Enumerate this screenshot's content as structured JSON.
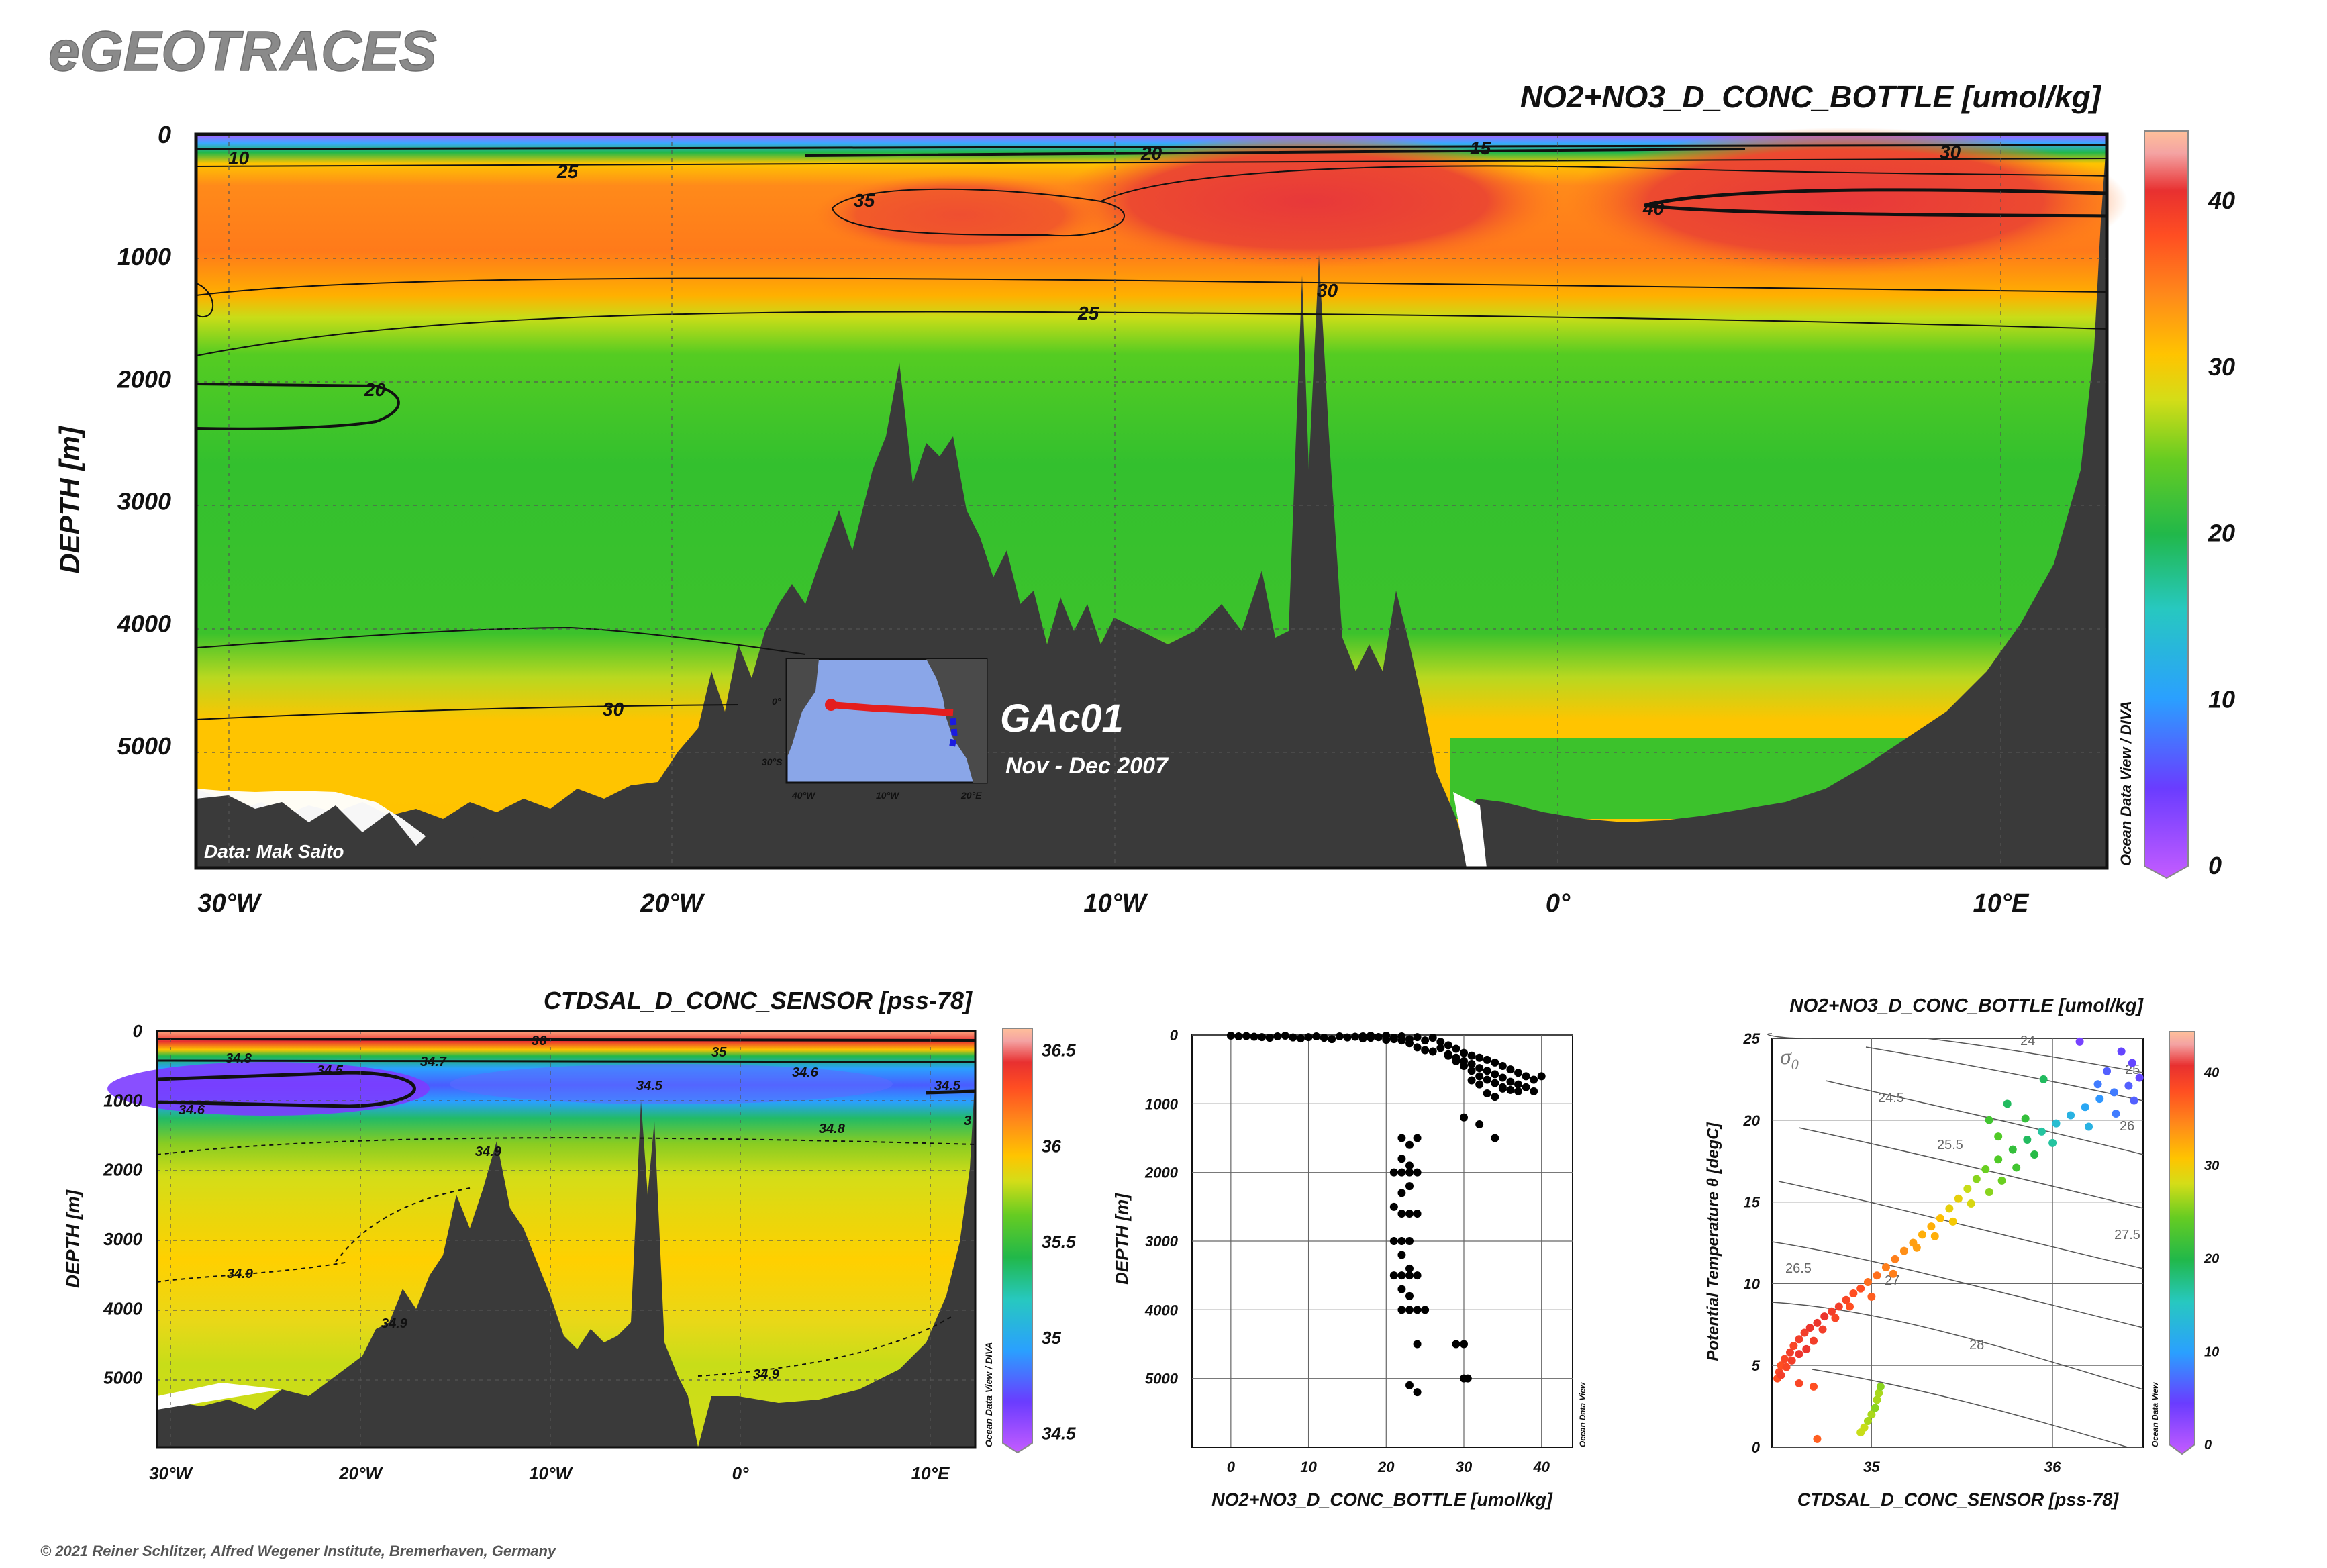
{
  "brand": "eGEOTRACES",
  "copyright": "© 2021 Reiner Schlitzer, Alfred Wegener Institute, Bremerhaven, Germany",
  "colors": {
    "seafloor": "#3a3a3a",
    "contour": "#111111",
    "colorscale": [
      "#b35cff",
      "#6a3cff",
      "#2aa0ff",
      "#27c8c0",
      "#21b84a",
      "#55cc22",
      "#c8dd18",
      "#ffc400",
      "#ff8a1a",
      "#ff4e22",
      "#e83030",
      "#f4a3a3",
      "#ffc09a"
    ]
  },
  "chart_data": [
    {
      "id": "main-section",
      "type": "heatmap",
      "title": "NO2+NO3_D_CONC_BOTTLE [umol/kg]",
      "ylabel": "DEPTH [m]",
      "xlabel": "",
      "x_ticks": [
        "30°W",
        "20°W",
        "10°W",
        "0°",
        "10°E"
      ],
      "y_ticks": [
        "0",
        "1000",
        "2000",
        "3000",
        "4000",
        "5000"
      ],
      "ylim": [
        0,
        6000
      ],
      "colorbar": {
        "ticks": [
          "0",
          "10",
          "20",
          "30",
          "40"
        ],
        "range": [
          0,
          44
        ]
      },
      "contour_labels": [
        "10",
        "25",
        "35",
        "20",
        "15",
        "30",
        "40",
        "30",
        "25",
        "20",
        "30"
      ],
      "credit": "Data: Mak Saito",
      "side_label": "Ocean Data View / DIVA",
      "grid": true,
      "inset": {
        "cruise": "GAc01",
        "dates": "Nov - Dec 2007",
        "lon_labels": [
          "40°W",
          "10°W",
          "20°E"
        ],
        "lat_labels": [
          "0°",
          "30°S"
        ]
      }
    },
    {
      "id": "salinity-section",
      "type": "heatmap",
      "title": "CTDSAL_D_CONC_SENSOR [pss-78]",
      "ylabel": "DEPTH [m]",
      "x_ticks": [
        "30°W",
        "20°W",
        "10°W",
        "0°",
        "10°E"
      ],
      "y_ticks": [
        "0",
        "1000",
        "2000",
        "3000",
        "4000",
        "5000"
      ],
      "ylim": [
        0,
        6000
      ],
      "colorbar": {
        "ticks": [
          "34.5",
          "35",
          "35.5",
          "36",
          "36.5"
        ],
        "range": [
          34.45,
          36.6
        ]
      },
      "contour_labels": [
        "36",
        "34.8",
        "35",
        "34.5",
        "34.7",
        "34.6",
        "34.5",
        "34.5",
        "34.6",
        "34.9",
        "34.8",
        "34.9",
        "34.9",
        "34.9",
        "3"
      ],
      "side_label": "Ocean Data View / DIVA",
      "grid": true
    },
    {
      "id": "profile-scatter",
      "type": "scatter",
      "xlabel": "NO2+NO3_D_CONC_BOTTLE [umol/kg]",
      "ylabel": "DEPTH [m]",
      "xlim": [
        -5,
        44
      ],
      "ylim": [
        0,
        6000
      ],
      "x_ticks": [
        "0",
        "10",
        "20",
        "30",
        "40"
      ],
      "y_ticks": [
        "0",
        "1000",
        "2000",
        "3000",
        "4000",
        "5000"
      ],
      "side_label": "Ocean Data View",
      "grid": true,
      "points": [
        [
          0,
          10
        ],
        [
          1,
          20
        ],
        [
          2,
          15
        ],
        [
          3,
          25
        ],
        [
          4,
          30
        ],
        [
          5,
          40
        ],
        [
          6,
          20
        ],
        [
          7,
          10
        ],
        [
          8,
          35
        ],
        [
          9,
          50
        ],
        [
          10,
          30
        ],
        [
          11,
          20
        ],
        [
          12,
          40
        ],
        [
          13,
          60
        ],
        [
          14,
          20
        ],
        [
          15,
          35
        ],
        [
          16,
          25
        ],
        [
          17,
          50
        ],
        [
          18,
          10
        ],
        [
          19,
          30
        ],
        [
          20,
          70
        ],
        [
          21,
          40
        ],
        [
          22,
          20
        ],
        [
          23,
          60
        ],
        [
          24,
          30
        ],
        [
          25,
          80
        ],
        [
          26,
          40
        ],
        [
          27,
          100
        ],
        [
          28,
          150
        ],
        [
          29,
          200
        ],
        [
          30,
          260
        ],
        [
          31,
          300
        ],
        [
          32,
          330
        ],
        [
          33,
          360
        ],
        [
          34,
          400
        ],
        [
          35,
          450
        ],
        [
          36,
          500
        ],
        [
          37,
          550
        ],
        [
          38,
          600
        ],
        [
          39,
          650
        ],
        [
          40,
          600
        ],
        [
          17,
          20
        ],
        [
          18,
          40
        ],
        [
          19,
          30
        ],
        [
          20,
          10
        ],
        [
          21,
          60
        ],
        [
          22,
          80
        ],
        [
          23,
          120
        ],
        [
          24,
          180
        ],
        [
          25,
          220
        ],
        [
          26,
          240
        ],
        [
          27,
          190
        ],
        [
          28,
          280
        ],
        [
          29,
          330
        ],
        [
          30,
          380
        ],
        [
          31,
          420
        ],
        [
          32,
          480
        ],
        [
          33,
          520
        ],
        [
          34,
          570
        ],
        [
          35,
          620
        ],
        [
          36,
          680
        ],
        [
          37,
          720
        ],
        [
          38,
          760
        ],
        [
          39,
          820
        ],
        [
          28,
          300
        ],
        [
          29,
          380
        ],
        [
          30,
          450
        ],
        [
          31,
          520
        ],
        [
          32,
          600
        ],
        [
          33,
          650
        ],
        [
          34,
          700
        ],
        [
          35,
          760
        ],
        [
          36,
          800
        ],
        [
          37,
          820
        ],
        [
          33,
          850
        ],
        [
          34,
          900
        ],
        [
          35,
          780
        ],
        [
          32,
          720
        ],
        [
          31,
          660
        ],
        [
          30,
          1200
        ],
        [
          32,
          1300
        ],
        [
          34,
          1500
        ],
        [
          22,
          1500
        ],
        [
          23,
          1600
        ],
        [
          24,
          1500
        ],
        [
          22,
          1800
        ],
        [
          23,
          1900
        ],
        [
          21,
          2000
        ],
        [
          22,
          2000
        ],
        [
          23,
          2000
        ],
        [
          24,
          2000
        ],
        [
          23,
          2200
        ],
        [
          22,
          2300
        ],
        [
          21,
          2500
        ],
        [
          22,
          2600
        ],
        [
          23,
          2600
        ],
        [
          24,
          2600
        ],
        [
          21,
          3000
        ],
        [
          22,
          3000
        ],
        [
          23,
          3000
        ],
        [
          22,
          3200
        ],
        [
          23,
          3400
        ],
        [
          21,
          3500
        ],
        [
          22,
          3500
        ],
        [
          23,
          3500
        ],
        [
          24,
          3500
        ],
        [
          22,
          3700
        ],
        [
          23,
          3800
        ],
        [
          22,
          4000
        ],
        [
          23,
          4000
        ],
        [
          24,
          4000
        ],
        [
          25,
          4000
        ],
        [
          24,
          4500
        ],
        [
          23,
          5100
        ],
        [
          24,
          5200
        ],
        [
          29,
          4500
        ],
        [
          30,
          4500
        ],
        [
          30,
          5000
        ],
        [
          30.5,
          5000
        ]
      ]
    },
    {
      "id": "ts-diagram",
      "type": "scatter",
      "title": "NO2+NO3_D_CONC_BOTTLE [umol/kg]",
      "xlabel": "CTDSAL_D_CONC_SENSOR [pss-78]",
      "ylabel": "Potential Temperature θ [degC]",
      "xlim": [
        34.45,
        36.5
      ],
      "ylim": [
        0,
        25
      ],
      "x_ticks": [
        "35",
        "36"
      ],
      "y_ticks": [
        "0",
        "5",
        "10",
        "15",
        "20",
        "25"
      ],
      "isopycnal_symbol": "σ",
      "isopycnal_subscript": "0",
      "isopycnal_labels": [
        "24",
        "24.5",
        "25",
        "25.5",
        "26",
        "26.5",
        "27",
        "27.5",
        "28"
      ],
      "colorbar": {
        "ticks": [
          "0",
          "10",
          "20",
          "30",
          "40"
        ],
        "range": [
          0,
          44
        ]
      },
      "side_label": "Ocean Data View",
      "grid": true,
      "points": [
        [
          34.48,
          4.2,
          33
        ],
        [
          34.49,
          4.6,
          34
        ],
        [
          34.5,
          5.0,
          33
        ],
        [
          34.52,
          5.4,
          34
        ],
        [
          34.55,
          5.8,
          35
        ],
        [
          34.57,
          6.2,
          34
        ],
        [
          34.6,
          6.6,
          35
        ],
        [
          34.63,
          7.0,
          35
        ],
        [
          34.66,
          7.3,
          36
        ],
        [
          34.7,
          7.6,
          36
        ],
        [
          34.74,
          8.0,
          36
        ],
        [
          34.78,
          8.3,
          35
        ],
        [
          34.82,
          8.6,
          35
        ],
        [
          34.86,
          9.0,
          34
        ],
        [
          34.9,
          9.4,
          33
        ],
        [
          34.94,
          9.7,
          33
        ],
        [
          34.98,
          10.1,
          31
        ],
        [
          35.03,
          10.5,
          31
        ],
        [
          35.08,
          11.0,
          30
        ],
        [
          35.13,
          11.5,
          30
        ],
        [
          35.18,
          12.0,
          29
        ],
        [
          35.23,
          12.5,
          28
        ],
        [
          35.28,
          13.0,
          27
        ],
        [
          35.33,
          13.5,
          27
        ],
        [
          35.38,
          14.0,
          26
        ],
        [
          35.43,
          14.6,
          24
        ],
        [
          35.48,
          15.2,
          24
        ],
        [
          35.53,
          15.8,
          22
        ],
        [
          35.58,
          16.4,
          20
        ],
        [
          35.63,
          17.0,
          19
        ],
        [
          35.7,
          17.6,
          18
        ],
        [
          35.78,
          18.2,
          16
        ],
        [
          35.86,
          18.8,
          14
        ],
        [
          35.94,
          19.3,
          12
        ],
        [
          36.02,
          19.8,
          10
        ],
        [
          36.1,
          20.3,
          9
        ],
        [
          36.18,
          20.8,
          8
        ],
        [
          36.26,
          21.3,
          7
        ],
        [
          36.34,
          21.7,
          6
        ],
        [
          36.42,
          22.1,
          5
        ],
        [
          34.5,
          4.4,
          35
        ],
        [
          34.53,
          4.9,
          34
        ],
        [
          34.56,
          5.3,
          35
        ],
        [
          34.6,
          5.7,
          36
        ],
        [
          34.64,
          6.0,
          36
        ],
        [
          34.68,
          6.5,
          35
        ],
        [
          34.73,
          7.2,
          35
        ],
        [
          34.8,
          7.9,
          34
        ],
        [
          34.88,
          8.6,
          33
        ],
        [
          35.0,
          9.2,
          32
        ],
        [
          35.12,
          10.6,
          30
        ],
        [
          35.25,
          12.2,
          28
        ],
        [
          35.35,
          12.9,
          27
        ],
        [
          35.45,
          13.8,
          25
        ],
        [
          35.55,
          14.9,
          23
        ],
        [
          35.65,
          15.6,
          20
        ],
        [
          35.72,
          16.3,
          19
        ],
        [
          35.8,
          17.1,
          17
        ],
        [
          35.9,
          17.9,
          15
        ],
        [
          36.0,
          18.6,
          12
        ],
        [
          36.2,
          19.6,
          9
        ],
        [
          36.35,
          20.4,
          6
        ],
        [
          36.45,
          21.2,
          5
        ],
        [
          36.48,
          22.6,
          4
        ],
        [
          36.44,
          23.5,
          4
        ],
        [
          36.38,
          24.2,
          4
        ],
        [
          36.3,
          23.0,
          5
        ],
        [
          36.25,
          22.2,
          6
        ],
        [
          36.15,
          24.8,
          3
        ],
        [
          35.95,
          22.5,
          14
        ],
        [
          35.85,
          20.1,
          16
        ],
        [
          35.75,
          21.0,
          14
        ],
        [
          35.7,
          19.0,
          18
        ],
        [
          35.65,
          20.0,
          17
        ],
        [
          34.98,
          1.6,
          21
        ],
        [
          35.0,
          2.0,
          21
        ],
        [
          35.02,
          2.4,
          20
        ],
        [
          35.03,
          2.9,
          21
        ],
        [
          35.04,
          3.3,
          21
        ],
        [
          35.05,
          3.7,
          20
        ],
        [
          34.96,
          1.2,
          22
        ],
        [
          34.94,
          0.9,
          22
        ],
        [
          34.68,
          3.7,
          33
        ],
        [
          34.7,
          0.5,
          32
        ],
        [
          34.6,
          3.9,
          34
        ]
      ]
    }
  ]
}
